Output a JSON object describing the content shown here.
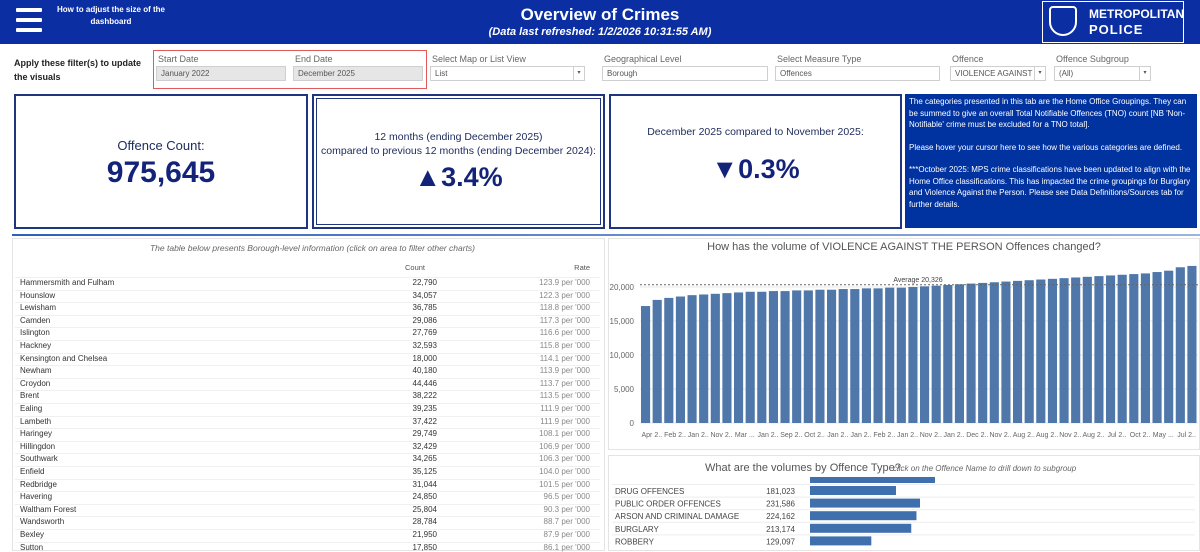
{
  "header": {
    "help_link": "How to adjust the size of the dashboard",
    "title": "Overview of Crimes",
    "subtitle": "(Data last refreshed: 1/2/2026 10:31:55 AM)",
    "logo_line1": "METROPOLITAN",
    "logo_line2": "POLICE"
  },
  "filters": {
    "prompt": "Apply these filter(s) to update the visuals",
    "items": [
      {
        "label": "Start Date",
        "value": "January 2022"
      },
      {
        "label": "End Date",
        "value": "December 2025"
      },
      {
        "label": "Select Map or List View",
        "value": "List"
      },
      {
        "label": "Geographical Level",
        "value": "Borough"
      },
      {
        "label": "Select Measure Type",
        "value": "Offences"
      },
      {
        "label": "Offence",
        "value": "VIOLENCE AGAINST TH..."
      },
      {
        "label": "Offence Subgroup",
        "value": "(All)"
      }
    ]
  },
  "cards": {
    "count": {
      "label": "Offence Count:",
      "value": "975,645"
    },
    "annual": {
      "line1": "12 months (ending December 2025)",
      "line2": "compared to previous 12 months (ending December 2024):",
      "change": "▲3.4%"
    },
    "monthly": {
      "label": "December 2025 compared to November 2025:",
      "change": "▼0.3%"
    }
  },
  "info": {
    "paragraphs": [
      "The categories presented in this tab are the Home Office Groupings.  They can be summed to give an overall Total Notifiable Offences (TNO) count [NB 'Non-Notifiable' crime must be excluded for a TNO total].",
      "Please hover your cursor here to see how the various categories are defined.",
      "***October 2025: MPS crime classifications have been updated to align with the Home Office classifications. This has impacted the crime groupings for Burglary and Violence Against the Person. Please see Data Definitions/Sources tab for further details."
    ]
  },
  "borough_table": {
    "caption": "The table below presents Borough-level information (click on area to filter other charts)",
    "columns": [
      "Count",
      "Rate"
    ],
    "rows": [
      [
        "Hammersmith and Fulham",
        "22,790",
        "123.9 per '000"
      ],
      [
        "Hounslow",
        "34,057",
        "122.3 per '000"
      ],
      [
        "Lewisham",
        "36,785",
        "118.8 per '000"
      ],
      [
        "Camden",
        "29,086",
        "117.3 per '000"
      ],
      [
        "Islington",
        "27,769",
        "116.6 per '000"
      ],
      [
        "Hackney",
        "32,593",
        "115.8 per '000"
      ],
      [
        "Kensington and Chelsea",
        "18,000",
        "114.1 per '000"
      ],
      [
        "Newham",
        "40,180",
        "113.9 per '000"
      ],
      [
        "Croydon",
        "44,446",
        "113.7 per '000"
      ],
      [
        "Brent",
        "38,222",
        "113.5 per '000"
      ],
      [
        "Ealing",
        "39,235",
        "111.9 per '000"
      ],
      [
        "Lambeth",
        "37,422",
        "111.9 per '000"
      ],
      [
        "Haringey",
        "29,749",
        "108.1 per '000"
      ],
      [
        "Hillingdon",
        "32,429",
        "106.9 per '000"
      ],
      [
        "Southwark",
        "34,265",
        "106.3 per '000"
      ],
      [
        "Enfield",
        "35,125",
        "104.0 per '000"
      ],
      [
        "Redbridge",
        "31,044",
        "101.5 per '000"
      ],
      [
        "Havering",
        "24,850",
        "96.5 per '000"
      ],
      [
        "Waltham Forest",
        "25,804",
        "90.3 per '000"
      ],
      [
        "Wandsworth",
        "28,784",
        "88.7 per '000"
      ],
      [
        "Bexley",
        "21,950",
        "87.9 per '000"
      ],
      [
        "Sutton",
        "17,850",
        "86.1 per '000"
      ]
    ]
  },
  "chart_data": [
    {
      "type": "bar",
      "title": "How has the volume of VIOLENCE AGAINST THE PERSON Offences changed?",
      "categories": [
        "Apr 2..",
        null,
        "Feb 2..",
        null,
        "Jan 2..",
        null,
        "Nov 2..",
        null,
        "Mar ...",
        null,
        "Jan 2..",
        null,
        "Sep 2..",
        null,
        "Oct 2..",
        null,
        "Jan 2..",
        null,
        "Jan 2..",
        null,
        "Feb 2..",
        null,
        "Jan 2..",
        null,
        "Nov 2..",
        null,
        "Jan 2..",
        null,
        "Dec 2..",
        null,
        "Nov 2..",
        null,
        "Aug 2..",
        null,
        "Aug 2..",
        null,
        "Nov 2..",
        null,
        "Aug 2..",
        null,
        "Jul 2..",
        null,
        "Oct 2..",
        null,
        "May ...",
        null,
        "Jul 2..",
        null
      ],
      "values": [
        17200,
        18100,
        18400,
        18600,
        18800,
        18900,
        19000,
        19100,
        19200,
        19300,
        19300,
        19400,
        19400,
        19500,
        19500,
        19600,
        19600,
        19700,
        19700,
        19800,
        19800,
        19900,
        19900,
        20000,
        20100,
        20200,
        20300,
        20400,
        20500,
        20600,
        20700,
        20800,
        20900,
        21000,
        21100,
        21200,
        21300,
        21400,
        21500,
        21600,
        21700,
        21800,
        21900,
        22000,
        22200,
        22400,
        22900,
        23100
      ],
      "color": "#4f77aa",
      "ylim": [
        0,
        25000
      ],
      "yticks": [
        0,
        {
          "value": 5000,
          "label": "5,000"
        },
        {
          "value": 10000,
          "label": "10,000"
        },
        {
          "value": 15000,
          "label": "15,000"
        },
        {
          "value": 20000,
          "label": "20,000"
        }
      ],
      "grid": true,
      "average": {
        "value": 20326,
        "label": "Average 20,326"
      }
    },
    {
      "type": "hbar",
      "title": "What are the volumes by Offence Type?",
      "subtitle": "click on the Offence Name to drill down to subgroup",
      "categories": [
        "DRUG OFFENCES",
        "PUBLIC ORDER OFFENCES",
        "ARSON AND CRIMINAL DAMAGE",
        "BURGLARY",
        "ROBBERY"
      ],
      "values": [
        181023,
        231586,
        224162,
        213174,
        129097
      ],
      "value_labels": [
        "181,023",
        "231,586",
        "224,162",
        "213,174",
        "129,097"
      ],
      "color": "#3f6fad"
    }
  ]
}
